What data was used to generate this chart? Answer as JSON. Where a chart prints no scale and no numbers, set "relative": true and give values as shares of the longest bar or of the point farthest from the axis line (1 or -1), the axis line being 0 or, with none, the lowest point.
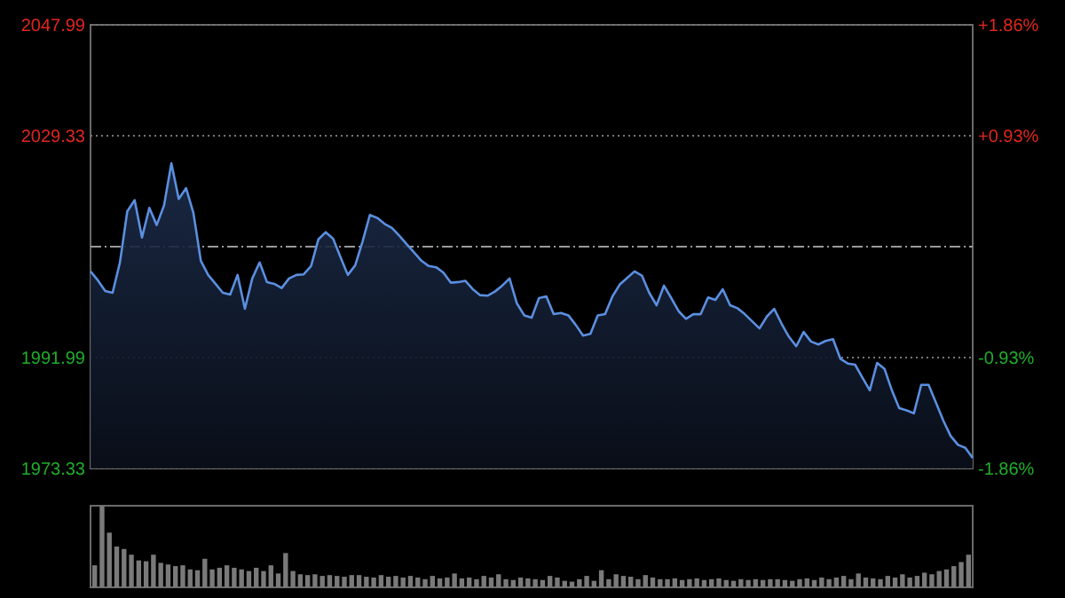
{
  "chart_data": [
    {
      "type": "area",
      "categories": [
        null,
        null,
        null,
        null,
        null,
        null,
        null,
        null,
        null,
        null,
        null,
        null,
        null,
        null,
        null,
        null,
        null,
        null,
        null,
        null,
        null,
        null,
        null,
        null,
        null,
        null,
        null,
        null,
        null,
        null,
        null,
        null,
        null,
        null,
        null,
        null,
        null,
        null,
        null,
        null,
        null,
        null,
        null,
        null,
        null,
        null,
        null,
        null,
        null,
        null,
        null,
        null,
        null,
        null,
        null,
        null,
        null,
        null,
        null,
        null,
        null,
        null,
        null,
        null,
        null,
        null,
        null,
        null,
        null,
        null,
        null,
        null,
        null,
        null,
        null,
        null,
        null,
        null,
        null,
        null,
        null,
        null,
        null,
        null,
        null,
        null,
        null,
        null,
        null,
        null,
        null,
        null,
        null,
        null,
        null,
        null,
        null,
        null,
        null,
        null,
        null,
        null,
        null,
        null,
        null,
        null,
        null,
        null,
        null,
        null,
        null,
        null,
        null,
        null,
        null,
        null,
        null,
        null,
        null,
        null,
        null
      ],
      "series": [
        {
          "color": "#5b8fe0",
          "values": [
            2006.5,
            2005.0,
            2003.2,
            2002.9,
            2008.0,
            2016.6,
            2018.5,
            2012.2,
            2017.2,
            2014.3,
            2017.6,
            2024.7,
            2018.7,
            2020.5,
            2016.3,
            2008.3,
            2005.9,
            2004.4,
            2002.9,
            2002.6,
            2005.9,
            2000.2,
            2005.3,
            2008.0,
            2004.7,
            2004.4,
            2003.7,
            2005.3,
            2005.9,
            2006.0,
            2007.4,
            2011.9,
            2013.1,
            2012.0,
            2008.9,
            2005.9,
            2007.5,
            2011.5,
            2016.0,
            2015.5,
            2014.5,
            2013.8,
            2012.5,
            2011.1,
            2009.7,
            2008.3,
            2007.4,
            2007.2,
            2006.3,
            2004.6,
            2004.7,
            2004.9,
            2003.5,
            2002.5,
            2002.4,
            2003.1,
            2004.1,
            2005.3,
            2001.1,
            1999.1,
            1998.7,
            2002.0,
            2002.3,
            1999.3,
            1999.5,
            1999.1,
            1997.5,
            1995.7,
            1996.0,
            1999.1,
            1999.3,
            2002.3,
            2004.3,
            2005.4,
            2006.5,
            2005.8,
            2002.9,
            2000.8,
            2004.1,
            2002.0,
            1999.8,
            1998.5,
            1999.3,
            1999.3,
            2002.1,
            2001.7,
            2003.5,
            2000.8,
            2000.3,
            1999.3,
            1998.1,
            1996.9,
            1998.9,
            2000.2,
            1997.7,
            1995.5,
            1993.9,
            1996.3,
            1994.7,
            1994.2,
            1994.8,
            1995.1,
            1991.8,
            1991.0,
            1990.8,
            1988.6,
            1986.5,
            1991.1,
            1990.1,
            1986.5,
            1983.5,
            1983.1,
            1982.6,
            1987.4,
            1987.4,
            1984.4,
            1981.4,
            1978.8,
            1977.3,
            1976.8,
            1975.1
          ]
        }
      ],
      "ylim": [
        1973.33,
        2047.99
      ],
      "yticks": [
        1973.33,
        1991.99,
        2029.33,
        2047.99
      ],
      "y2lim": [
        -1.86,
        1.86
      ],
      "y2ticks": [
        {
          "value": -1.86,
          "label": "-1.86%"
        },
        {
          "value": -0.93,
          "label": "-0.93%"
        },
        {
          "value": 0.93,
          "label": "+0.93%"
        },
        {
          "value": 1.86,
          "label": "+1.86%"
        }
      ],
      "ref_lines": [
        {
          "axis": "y",
          "value": 2010.66,
          "line_style": "dashed"
        }
      ],
      "grid": "y"
    },
    {
      "type": "bar",
      "relative": true,
      "color": "#7a7a7a",
      "categories": [
        null,
        null,
        null,
        null,
        null,
        null,
        null,
        null,
        null,
        null,
        null,
        null,
        null,
        null,
        null,
        null,
        null,
        null,
        null,
        null,
        null,
        null,
        null,
        null,
        null,
        null,
        null,
        null,
        null,
        null,
        null,
        null,
        null,
        null,
        null,
        null,
        null,
        null,
        null,
        null,
        null,
        null,
        null,
        null,
        null,
        null,
        null,
        null,
        null,
        null,
        null,
        null,
        null,
        null,
        null,
        null,
        null,
        null,
        null,
        null,
        null,
        null,
        null,
        null,
        null,
        null,
        null,
        null,
        null,
        null,
        null,
        null,
        null,
        null,
        null,
        null,
        null,
        null,
        null,
        null,
        null,
        null,
        null,
        null,
        null,
        null,
        null,
        null,
        null,
        null,
        null,
        null,
        null,
        null,
        null,
        null,
        null,
        null,
        null,
        null,
        null,
        null,
        null,
        null,
        null,
        null,
        null,
        null,
        null,
        null,
        null,
        null,
        null,
        null,
        null,
        null,
        null,
        null,
        null,
        null
      ],
      "values": [
        0.27,
        1.0,
        0.67,
        0.5,
        0.47,
        0.4,
        0.33,
        0.32,
        0.4,
        0.3,
        0.28,
        0.26,
        0.27,
        0.22,
        0.21,
        0.35,
        0.22,
        0.24,
        0.27,
        0.24,
        0.22,
        0.2,
        0.24,
        0.2,
        0.27,
        0.17,
        0.42,
        0.2,
        0.16,
        0.15,
        0.16,
        0.14,
        0.15,
        0.14,
        0.13,
        0.15,
        0.15,
        0.13,
        0.12,
        0.15,
        0.13,
        0.14,
        0.12,
        0.14,
        0.12,
        0.1,
        0.14,
        0.11,
        0.12,
        0.17,
        0.11,
        0.12,
        0.1,
        0.14,
        0.12,
        0.16,
        0.1,
        0.09,
        0.12,
        0.11,
        0.1,
        0.09,
        0.14,
        0.12,
        0.08,
        0.07,
        0.1,
        0.14,
        0.08,
        0.21,
        0.1,
        0.16,
        0.14,
        0.13,
        0.1,
        0.15,
        0.12,
        0.1,
        0.1,
        0.11,
        0.09,
        0.1,
        0.11,
        0.09,
        0.1,
        0.11,
        0.09,
        0.08,
        0.1,
        0.09,
        0.1,
        0.09,
        0.1,
        0.1,
        0.09,
        0.08,
        0.1,
        0.11,
        0.09,
        0.12,
        0.1,
        0.12,
        0.14,
        0.1,
        0.17,
        0.12,
        0.11,
        0.1,
        0.14,
        0.12,
        0.16,
        0.12,
        0.14,
        0.18,
        0.16,
        0.2,
        0.22,
        0.26,
        0.31,
        0.4
      ]
    }
  ]
}
